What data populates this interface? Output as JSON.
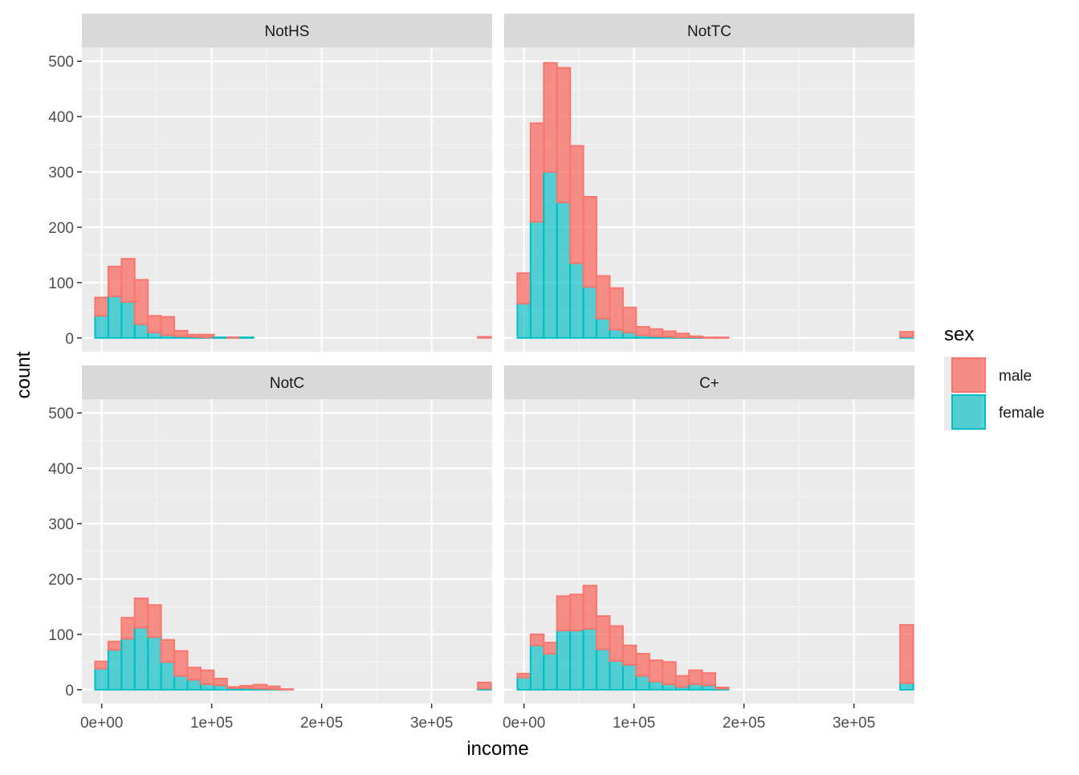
{
  "chart_data": {
    "type": "histogram",
    "stacked": true,
    "facet_layout": "2x2 grid, shared axes",
    "x_axis": {
      "label": "income",
      "ticks": [
        "0e+00",
        "1e+05",
        "2e+05",
        "3e+05"
      ],
      "tick_values": [
        0,
        100000,
        200000,
        300000
      ],
      "range": [
        -18000,
        355000
      ]
    },
    "y_axis": {
      "label": "count",
      "ticks": [
        "0",
        "100",
        "200",
        "300",
        "400",
        "500"
      ],
      "tick_values": [
        0,
        100,
        200,
        300,
        400,
        500
      ],
      "range": [
        -25,
        525
      ]
    },
    "bin_width": 12000,
    "bin_centers": [
      0,
      12000,
      24000,
      36000,
      48000,
      60000,
      72000,
      84000,
      96000,
      108000,
      120000,
      132000,
      144000,
      156000,
      168000,
      180000,
      192000,
      204000,
      216000,
      228000,
      240000,
      252000,
      264000,
      276000,
      288000,
      300000,
      312000,
      324000,
      336000,
      348000
    ],
    "legend": {
      "title": "sex",
      "position": "right",
      "entries": [
        {
          "label": "male",
          "fill": "#F8766D",
          "stroke": "#F8766D"
        },
        {
          "label": "female",
          "fill": "#00BFC4",
          "stroke": "#00BFC4"
        }
      ]
    },
    "grid": true,
    "colors": {
      "panel_bg": "#EBEBEB",
      "strip_bg": "#D9D9D9",
      "grid_major": "#FFFFFF",
      "grid_minor": "#F5F5F5"
    },
    "panels": [
      {
        "strip": "NotHS",
        "female": [
          40,
          75,
          65,
          25,
          10,
          5,
          3,
          2,
          1,
          1,
          0,
          1,
          0,
          0,
          0,
          0,
          0,
          0,
          0,
          0,
          0,
          0,
          0,
          0,
          0,
          0,
          0,
          0,
          0,
          0
        ],
        "male": [
          33,
          54,
          78,
          80,
          30,
          33,
          10,
          4,
          5,
          0,
          1,
          0,
          0,
          0,
          0,
          0,
          0,
          0,
          0,
          0,
          0,
          0,
          0,
          0,
          0,
          0,
          0,
          0,
          0,
          2
        ]
      },
      {
        "strip": "NotTC",
        "female": [
          62,
          210,
          300,
          245,
          135,
          92,
          35,
          15,
          10,
          5,
          3,
          2,
          1,
          1,
          0,
          0,
          0,
          0,
          0,
          0,
          0,
          0,
          0,
          0,
          0,
          0,
          0,
          0,
          0,
          2
        ],
        "male": [
          55,
          178,
          197,
          243,
          212,
          163,
          77,
          75,
          45,
          15,
          13,
          10,
          7,
          2,
          1,
          1,
          0,
          0,
          0,
          0,
          0,
          0,
          0,
          0,
          0,
          0,
          0,
          0,
          0,
          9
        ]
      },
      {
        "strip": "NotC",
        "female": [
          38,
          72,
          92,
          112,
          95,
          50,
          25,
          18,
          10,
          8,
          3,
          3,
          2,
          1,
          0,
          0,
          0,
          0,
          0,
          0,
          0,
          0,
          0,
          0,
          0,
          0,
          0,
          0,
          0,
          2
        ],
        "male": [
          13,
          15,
          38,
          53,
          58,
          40,
          45,
          22,
          25,
          12,
          2,
          4,
          7,
          5,
          1,
          0,
          0,
          0,
          0,
          0,
          0,
          0,
          0,
          0,
          0,
          0,
          0,
          0,
          0,
          11
        ]
      },
      {
        "strip": "C+",
        "female": [
          22,
          80,
          65,
          107,
          107,
          110,
          73,
          52,
          45,
          25,
          15,
          10,
          5,
          10,
          8,
          2,
          0,
          0,
          0,
          0,
          0,
          0,
          0,
          0,
          0,
          0,
          0,
          0,
          0,
          12
        ],
        "male": [
          7,
          20,
          20,
          62,
          65,
          78,
          60,
          63,
          35,
          40,
          38,
          40,
          20,
          25,
          22,
          2,
          0,
          0,
          0,
          0,
          0,
          0,
          0,
          0,
          0,
          0,
          0,
          0,
          0,
          105
        ]
      }
    ]
  }
}
